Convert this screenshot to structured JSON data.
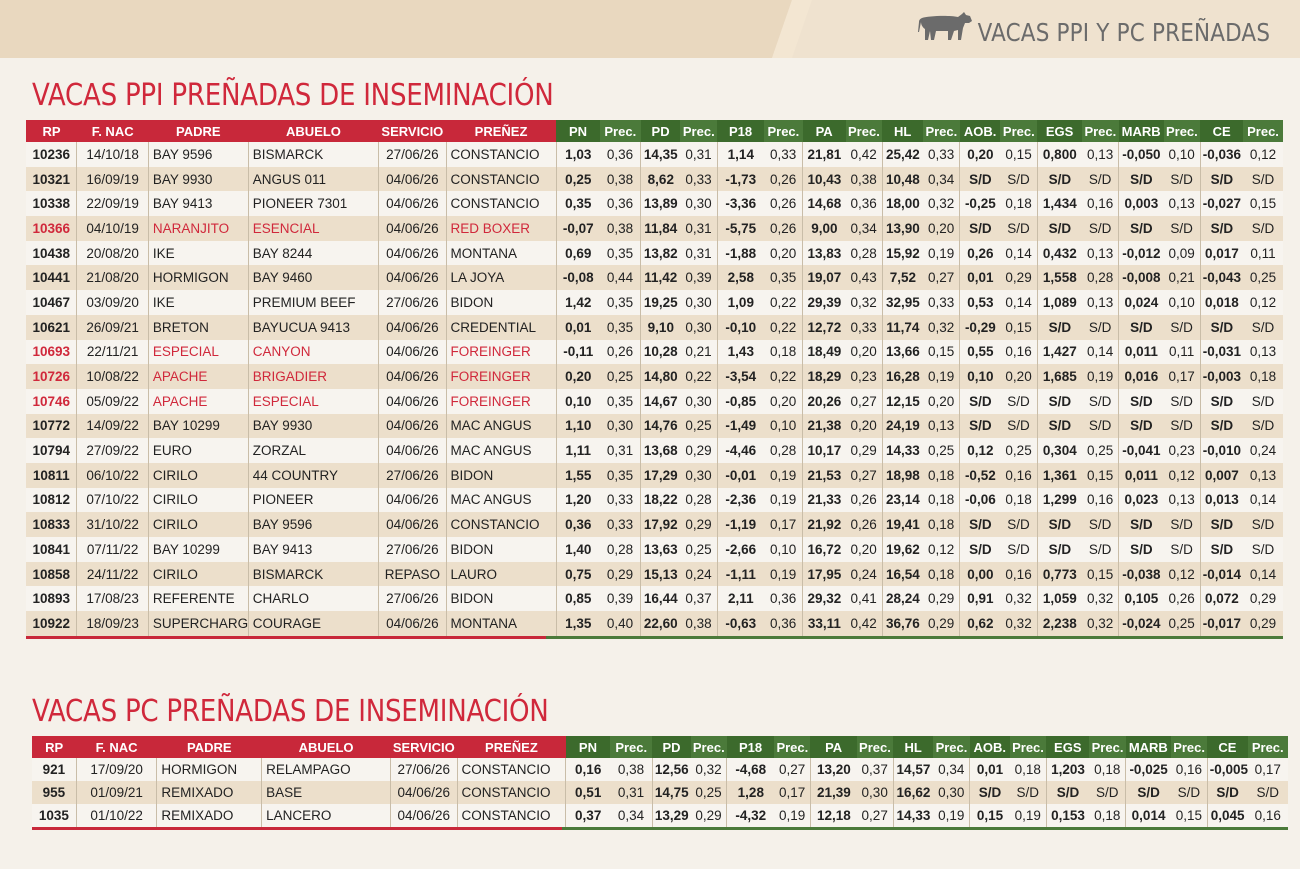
{
  "header": {
    "brand_text": "VACAS PPI Y PC PREÑADAS",
    "brand_icon": "cow-icon"
  },
  "colors": {
    "red": "#c8283a",
    "green": "#4b7a3a",
    "band": "#efe2cf",
    "row_alt": "#ecdfcb"
  },
  "columns": [
    "RP",
    "F. NAC",
    "PADRE",
    "ABUELO",
    "SERVICIO",
    "PREÑEZ",
    "PN",
    "Prec.",
    "PD",
    "Prec.",
    "P18",
    "Prec.",
    "PA",
    "Prec.",
    "HL",
    "Prec.",
    "AOB.",
    "Prec.",
    "EGS",
    "Prec.",
    "MARB",
    "Prec.",
    "CE",
    "Prec."
  ],
  "section1": {
    "title": "VACAS PPI PREÑADAS DE INSEMINACIÓN",
    "rows": [
      {
        "hl": false,
        "c": [
          "10236",
          "14/10/18",
          "BAY 9596",
          "BISMARCK",
          "27/06/26",
          "CONSTANCIO",
          "1,03",
          "0,36",
          "14,35",
          "0,31",
          "1,14",
          "0,33",
          "21,81",
          "0,42",
          "25,42",
          "0,33",
          "0,20",
          "0,15",
          "0,800",
          "0,13",
          "-0,050",
          "0,10",
          "-0,036",
          "0,12"
        ]
      },
      {
        "hl": false,
        "c": [
          "10321",
          "16/09/19",
          "BAY 9930",
          "ANGUS 011",
          "04/06/26",
          "CONSTANCIO",
          "0,25",
          "0,38",
          "8,62",
          "0,33",
          "-1,73",
          "0,26",
          "10,43",
          "0,38",
          "10,48",
          "0,34",
          "S/D",
          "S/D",
          "S/D",
          "S/D",
          "S/D",
          "S/D",
          "S/D",
          "S/D"
        ]
      },
      {
        "hl": false,
        "c": [
          "10338",
          "22/09/19",
          "BAY 9413",
          "PIONEER 7301",
          "04/06/26",
          "CONSTANCIO",
          "0,35",
          "0,36",
          "13,89",
          "0,30",
          "-3,36",
          "0,26",
          "14,68",
          "0,36",
          "18,00",
          "0,32",
          "-0,25",
          "0,18",
          "1,434",
          "0,16",
          "0,003",
          "0,13",
          "-0,027",
          "0,15"
        ]
      },
      {
        "hl": true,
        "c": [
          "10366",
          "04/10/19",
          "NARANJITO",
          "ESENCIAL",
          "04/06/26",
          "RED BOXER",
          "-0,07",
          "0,38",
          "11,84",
          "0,31",
          "-5,75",
          "0,26",
          "9,00",
          "0,34",
          "13,90",
          "0,20",
          "S/D",
          "S/D",
          "S/D",
          "S/D",
          "S/D",
          "S/D",
          "S/D",
          "S/D"
        ]
      },
      {
        "hl": false,
        "c": [
          "10438",
          "20/08/20",
          "IKE",
          "BAY 8244",
          "04/06/26",
          "MONTANA",
          "0,69",
          "0,35",
          "13,82",
          "0,31",
          "-1,88",
          "0,20",
          "13,83",
          "0,28",
          "15,92",
          "0,19",
          "0,26",
          "0,14",
          "0,432",
          "0,13",
          "-0,012",
          "0,09",
          "0,017",
          "0,11"
        ]
      },
      {
        "hl": false,
        "c": [
          "10441",
          "21/08/20",
          "HORMIGON",
          "BAY 9460",
          "04/06/26",
          "LA JOYA",
          "-0,08",
          "0,44",
          "11,42",
          "0,39",
          "2,58",
          "0,35",
          "19,07",
          "0,43",
          "7,52",
          "0,27",
          "0,01",
          "0,29",
          "1,558",
          "0,28",
          "-0,008",
          "0,21",
          "-0,043",
          "0,25"
        ]
      },
      {
        "hl": false,
        "c": [
          "10467",
          "03/09/20",
          "IKE",
          "PREMIUM BEEF",
          "27/06/26",
          "BIDON",
          "1,42",
          "0,35",
          "19,25",
          "0,30",
          "1,09",
          "0,22",
          "29,39",
          "0,32",
          "32,95",
          "0,33",
          "0,53",
          "0,14",
          "1,089",
          "0,13",
          "0,024",
          "0,10",
          "0,018",
          "0,12"
        ]
      },
      {
        "hl": false,
        "c": [
          "10621",
          "26/09/21",
          "BRETON",
          "BAYUCUA 9413",
          "04/06/26",
          "CREDENTIAL",
          "0,01",
          "0,35",
          "9,10",
          "0,30",
          "-0,10",
          "0,22",
          "12,72",
          "0,33",
          "11,74",
          "0,32",
          "-0,29",
          "0,15",
          "S/D",
          "S/D",
          "S/D",
          "S/D",
          "S/D",
          "S/D"
        ]
      },
      {
        "hl": true,
        "c": [
          "10693",
          "22/11/21",
          "ESPECIAL",
          "CANYON",
          "04/06/26",
          "FOREINGER",
          "-0,11",
          "0,26",
          "10,28",
          "0,21",
          "1,43",
          "0,18",
          "18,49",
          "0,20",
          "13,66",
          "0,15",
          "0,55",
          "0,16",
          "1,427",
          "0,14",
          "0,011",
          "0,11",
          "-0,031",
          "0,13"
        ]
      },
      {
        "hl": true,
        "c": [
          "10726",
          "10/08/22",
          "APACHE",
          "BRIGADIER",
          "04/06/26",
          "FOREINGER",
          "0,20",
          "0,25",
          "14,80",
          "0,22",
          "-3,54",
          "0,22",
          "18,29",
          "0,23",
          "16,28",
          "0,19",
          "0,10",
          "0,20",
          "1,685",
          "0,19",
          "0,016",
          "0,17",
          "-0,003",
          "0,18"
        ]
      },
      {
        "hl": true,
        "c": [
          "10746",
          "05/09/22",
          "APACHE",
          "ESPECIAL",
          "04/06/26",
          "FOREINGER",
          "0,10",
          "0,35",
          "14,67",
          "0,30",
          "-0,85",
          "0,20",
          "20,26",
          "0,27",
          "12,15",
          "0,20",
          "S/D",
          "S/D",
          "S/D",
          "S/D",
          "S/D",
          "S/D",
          "S/D",
          "S/D"
        ]
      },
      {
        "hl": false,
        "c": [
          "10772",
          "14/09/22",
          "BAY 10299",
          "BAY 9930",
          "04/06/26",
          "MAC ANGUS",
          "1,10",
          "0,30",
          "14,76",
          "0,25",
          "-1,49",
          "0,10",
          "21,38",
          "0,20",
          "24,19",
          "0,13",
          "S/D",
          "S/D",
          "S/D",
          "S/D",
          "S/D",
          "S/D",
          "S/D",
          "S/D"
        ]
      },
      {
        "hl": false,
        "c": [
          "10794",
          "27/09/22",
          "EURO",
          "ZORZAL",
          "04/06/26",
          "MAC ANGUS",
          "1,11",
          "0,31",
          "13,68",
          "0,29",
          "-4,46",
          "0,28",
          "10,17",
          "0,29",
          "14,33",
          "0,25",
          "0,12",
          "0,25",
          "0,304",
          "0,25",
          "-0,041",
          "0,23",
          "-0,010",
          "0,24"
        ]
      },
      {
        "hl": false,
        "c": [
          "10811",
          "06/10/22",
          "CIRILO",
          "44 COUNTRY",
          "27/06/26",
          "BIDON",
          "1,55",
          "0,35",
          "17,29",
          "0,30",
          "-0,01",
          "0,19",
          "21,53",
          "0,27",
          "18,98",
          "0,18",
          "-0,52",
          "0,16",
          "1,361",
          "0,15",
          "0,011",
          "0,12",
          "0,007",
          "0,13"
        ]
      },
      {
        "hl": false,
        "c": [
          "10812",
          "07/10/22",
          "CIRILO",
          "PIONEER",
          "04/06/26",
          "MAC ANGUS",
          "1,20",
          "0,33",
          "18,22",
          "0,28",
          "-2,36",
          "0,19",
          "21,33",
          "0,26",
          "23,14",
          "0,18",
          "-0,06",
          "0,18",
          "1,299",
          "0,16",
          "0,023",
          "0,13",
          "0,013",
          "0,14"
        ]
      },
      {
        "hl": false,
        "c": [
          "10833",
          "31/10/22",
          "CIRILO",
          "BAY 9596",
          "04/06/26",
          "CONSTANCIO",
          "0,36",
          "0,33",
          "17,92",
          "0,29",
          "-1,19",
          "0,17",
          "21,92",
          "0,26",
          "19,41",
          "0,18",
          "S/D",
          "S/D",
          "S/D",
          "S/D",
          "S/D",
          "S/D",
          "S/D",
          "S/D"
        ]
      },
      {
        "hl": false,
        "c": [
          "10841",
          "07/11/22",
          "BAY 10299",
          "BAY 9413",
          "27/06/26",
          "BIDON",
          "1,40",
          "0,28",
          "13,63",
          "0,25",
          "-2,66",
          "0,10",
          "16,72",
          "0,20",
          "19,62",
          "0,12",
          "S/D",
          "S/D",
          "S/D",
          "S/D",
          "S/D",
          "S/D",
          "S/D",
          "S/D"
        ]
      },
      {
        "hl": false,
        "c": [
          "10858",
          "24/11/22",
          "CIRILO",
          "BISMARCK",
          "REPASO",
          "LAURO",
          "0,75",
          "0,29",
          "15,13",
          "0,24",
          "-1,11",
          "0,19",
          "17,95",
          "0,24",
          "16,54",
          "0,18",
          "0,00",
          "0,16",
          "0,773",
          "0,15",
          "-0,038",
          "0,12",
          "-0,014",
          "0,14"
        ]
      },
      {
        "hl": false,
        "c": [
          "10893",
          "17/08/23",
          "REFERENTE",
          "CHARLO",
          "27/06/26",
          "BIDON",
          "0,85",
          "0,39",
          "16,44",
          "0,37",
          "2,11",
          "0,36",
          "29,32",
          "0,41",
          "28,24",
          "0,29",
          "0,91",
          "0,32",
          "1,059",
          "0,32",
          "0,105",
          "0,26",
          "0,072",
          "0,29"
        ]
      },
      {
        "hl": false,
        "c": [
          "10922",
          "18/09/23",
          "SUPERCHARGER",
          "COURAGE",
          "04/06/26",
          "MONTANA",
          "1,35",
          "0,40",
          "22,60",
          "0,38",
          "-0,63",
          "0,36",
          "33,11",
          "0,42",
          "36,76",
          "0,29",
          "0,62",
          "0,32",
          "2,238",
          "0,32",
          "-0,024",
          "0,25",
          "-0,017",
          "0,29"
        ]
      }
    ]
  },
  "section2": {
    "title": "VACAS PC PREÑADAS DE INSEMINACIÓN",
    "rows": [
      {
        "hl": false,
        "c": [
          "921",
          "17/09/20",
          "HORMIGON",
          "RELAMPAGO",
          "27/06/26",
          "CONSTANCIO",
          "0,16",
          "0,38",
          "12,56",
          "0,32",
          "-4,68",
          "0,27",
          "13,20",
          "0,37",
          "14,57",
          "0,34",
          "0,01",
          "0,18",
          "1,203",
          "0,18",
          "-0,025",
          "0,16",
          "-0,005",
          "0,17"
        ]
      },
      {
        "hl": false,
        "c": [
          "955",
          "01/09/21",
          "REMIXADO",
          "BASE",
          "04/06/26",
          "CONSTANCIO",
          "0,51",
          "0,31",
          "14,75",
          "0,25",
          "1,28",
          "0,17",
          "21,39",
          "0,30",
          "16,62",
          "0,30",
          "S/D",
          "S/D",
          "S/D",
          "S/D",
          "S/D",
          "S/D",
          "S/D",
          "S/D"
        ]
      },
      {
        "hl": false,
        "c": [
          "1035",
          "01/10/22",
          "REMIXADO",
          "LANCERO",
          "04/06/26",
          "CONSTANCIO",
          "0,37",
          "0,34",
          "13,29",
          "0,29",
          "-4,32",
          "0,19",
          "12,18",
          "0,27",
          "14,33",
          "0,19",
          "0,15",
          "0,19",
          "0,153",
          "0,18",
          "0,014",
          "0,15",
          "0,045",
          "0,16"
        ]
      }
    ]
  }
}
